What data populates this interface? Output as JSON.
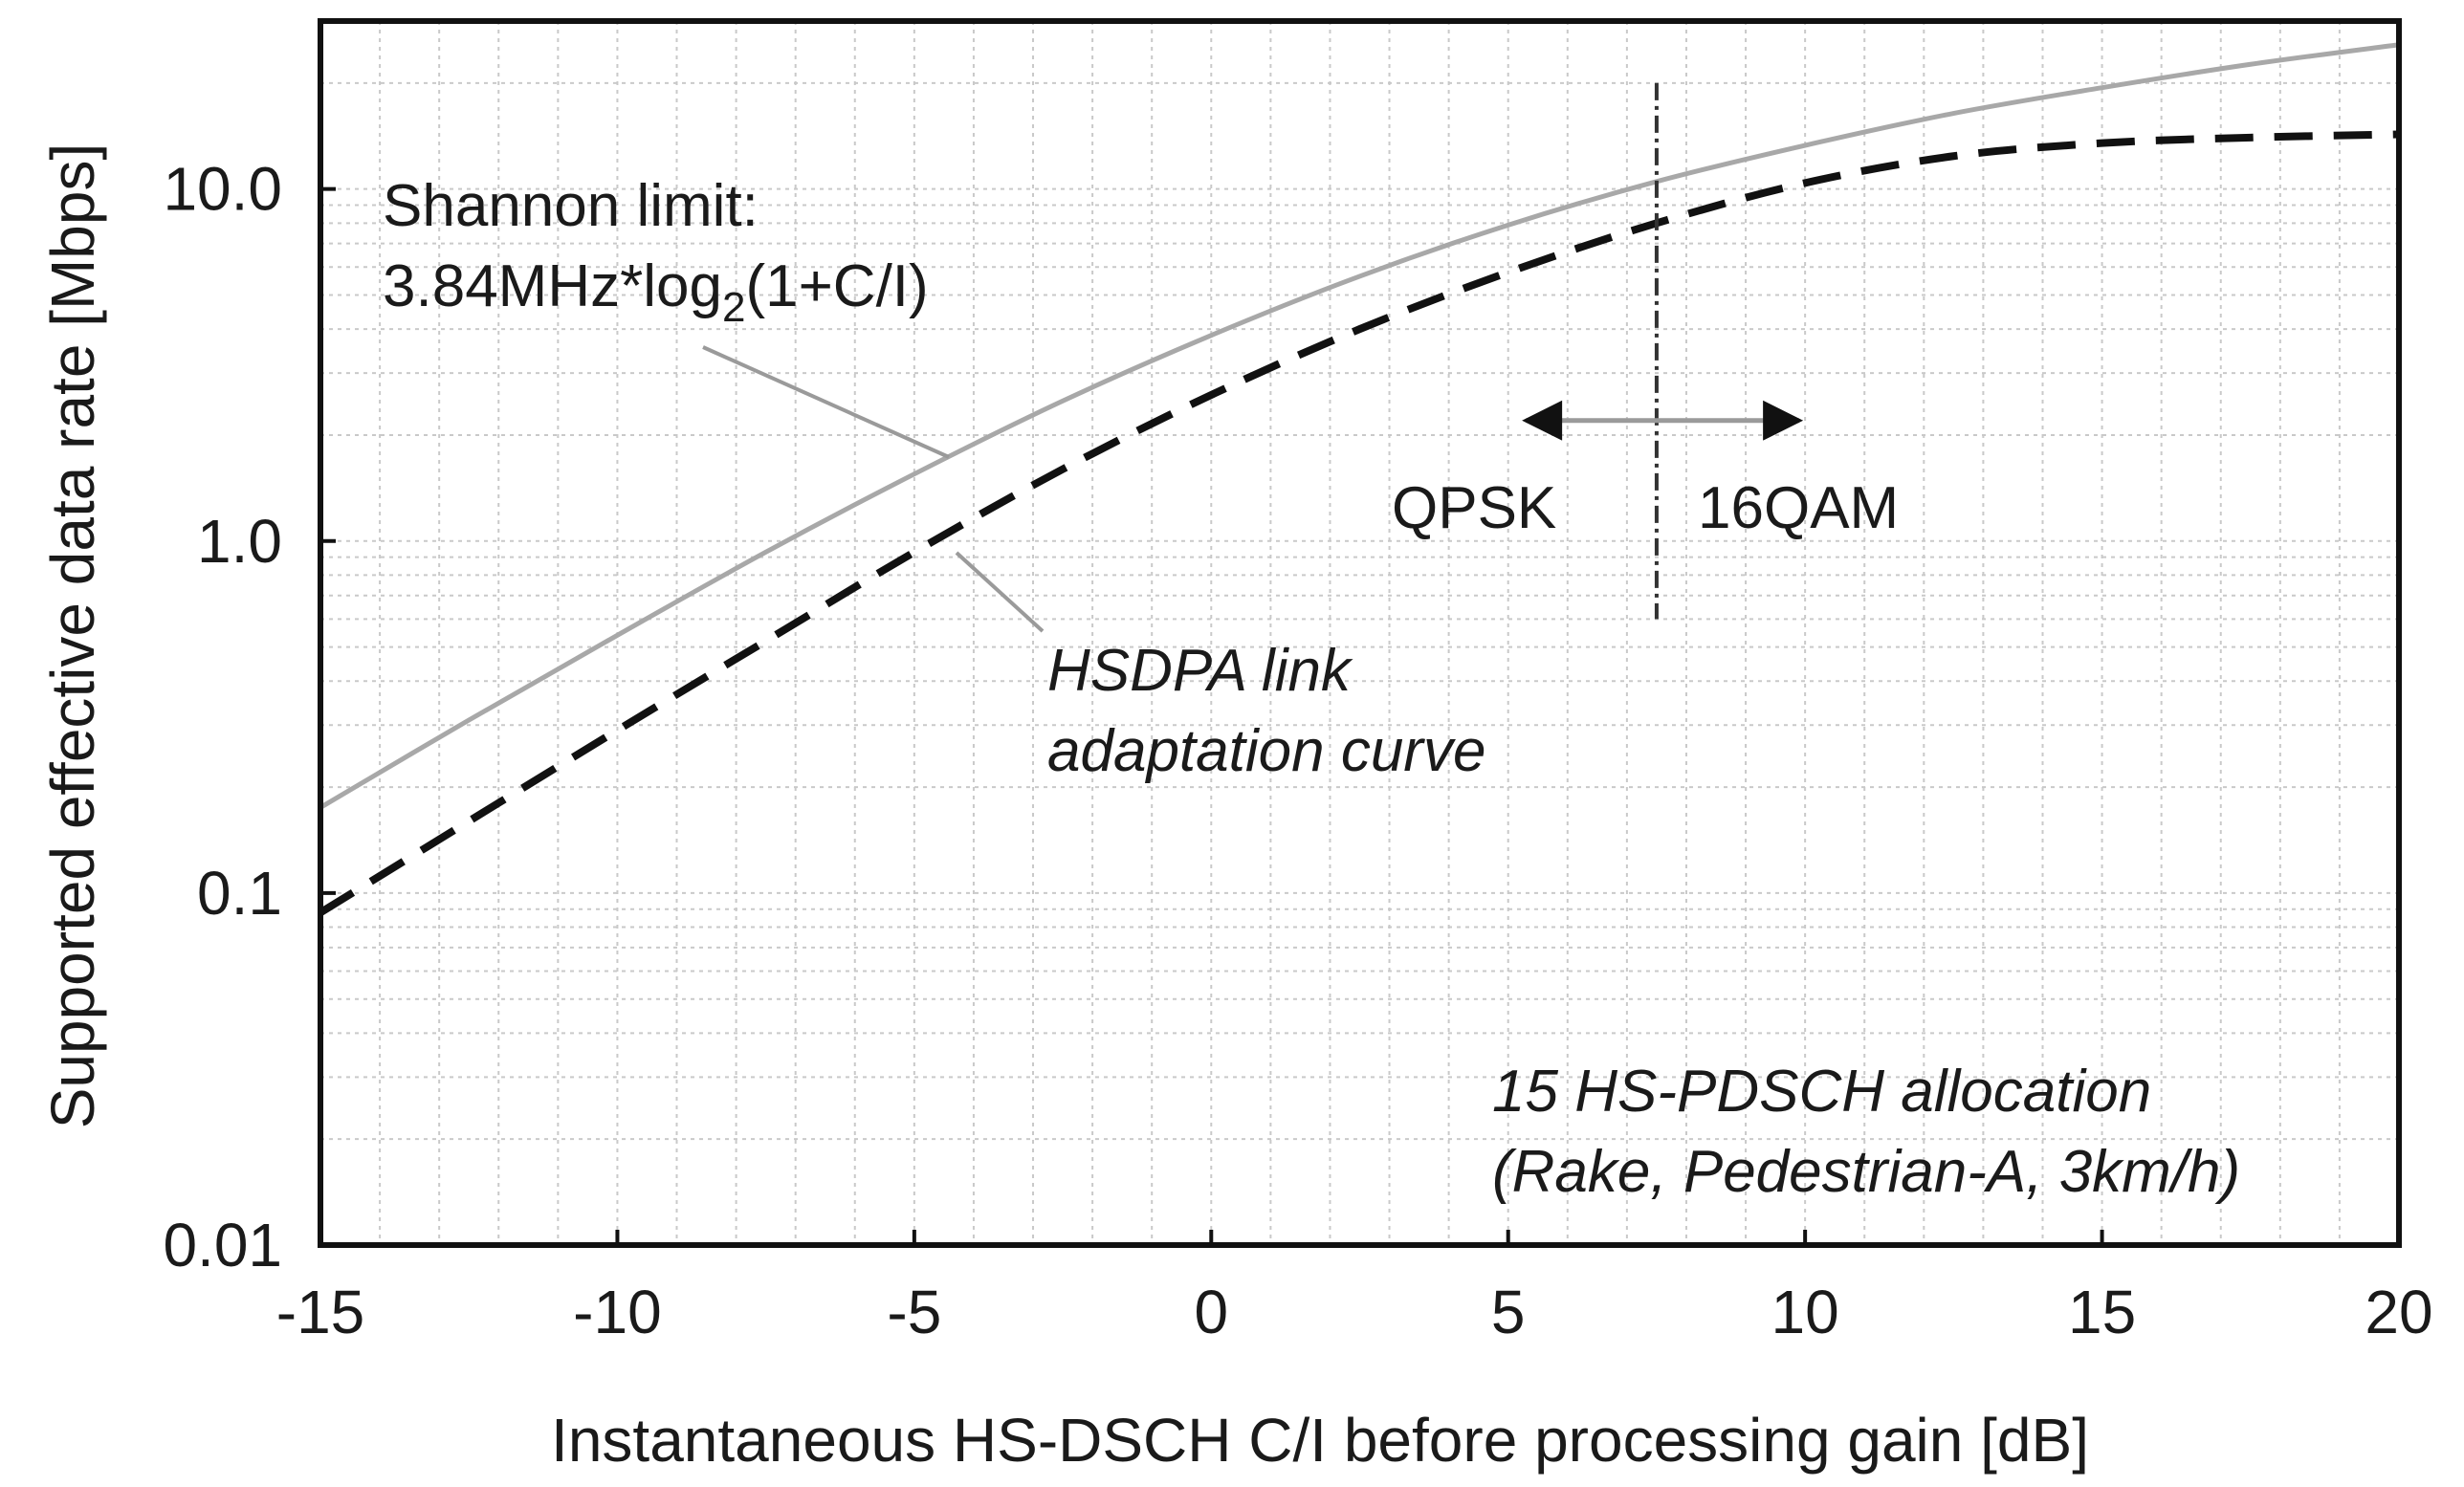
{
  "chart_data": {
    "type": "line",
    "title": "",
    "xlabel": "Instantaneous HS-DSCH C/I before processing gain [dB]",
    "ylabel": "Supported effective data rate [Mbps]",
    "xlim": [
      -15,
      20
    ],
    "ylim": [
      0.01,
      30
    ],
    "yscale": "log",
    "grid": true,
    "x_ticks": [
      -15,
      -10,
      -5,
      0,
      5,
      10,
      15,
      20
    ],
    "x_tick_labels": [
      "-15",
      "-10",
      "-5",
      "0",
      "5",
      "10",
      "15",
      "20"
    ],
    "y_ticks": [
      0.01,
      0.1,
      1,
      10
    ],
    "y_tick_labels": [
      "0.01",
      "0.1",
      "1.0",
      "10.0"
    ],
    "series": [
      {
        "name": "Shannon limit: 3.84MHz*log2(1+C/I)",
        "style": "solid",
        "color": "#a8a8a8",
        "x": [
          -15,
          -12.5,
          -10,
          -7.5,
          -5,
          -2.5,
          0,
          2.5,
          5,
          7.5,
          10,
          12.5,
          15,
          17.5,
          20
        ],
        "y": [
          0.175,
          0.31,
          0.54,
          0.93,
          1.55,
          2.5,
          3.84,
          5.65,
          7.9,
          10.5,
          13.3,
          16.4,
          19.4,
          22.6,
          25.7
        ]
      },
      {
        "name": "HSDPA link adaptation curve",
        "style": "dashed",
        "color": "#111111",
        "x": [
          -15,
          -12.5,
          -10,
          -7.5,
          -5,
          -2.5,
          0,
          2.5,
          5,
          7.5,
          10,
          12.5,
          15,
          17.5,
          20
        ],
        "y": [
          0.088,
          0.16,
          0.29,
          0.52,
          0.93,
          1.6,
          2.6,
          4.0,
          5.8,
          8.0,
          10.4,
          12.4,
          13.5,
          14.0,
          14.3
        ]
      }
    ],
    "switch_point": {
      "x": 7.5,
      "y_from": 0.6,
      "y_to": 20
    },
    "arrow": {
      "x_from": 5.3,
      "x_to": 9.9,
      "y": 2.2
    },
    "annotations": {
      "shannon_line1": "Shannon limit:",
      "shannon_line2_pre": "3.84MHz*log",
      "shannon_line2_sub": "2",
      "shannon_line2_post": "(1+C/I)",
      "qpsk": "QPSK",
      "qam": "16QAM",
      "hsdpa_line1": "HSDPA link",
      "hsdpa_line2": "adaptation curve",
      "alloc_line1": "15 HS-PDSCH allocation",
      "alloc_line2": "(Rake, Pedestrian-A, 3km/h)"
    }
  }
}
